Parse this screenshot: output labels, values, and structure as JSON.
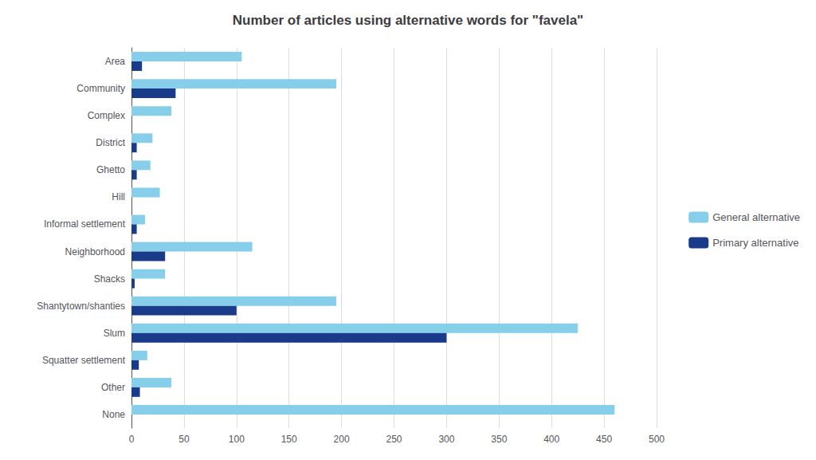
{
  "chart_data": {
    "type": "bar",
    "orientation": "horizontal",
    "title": "Number of articles using alternative words for \"favela\"",
    "categories": [
      "None",
      "Other",
      "Squatter settlement",
      "Slum",
      "Shantytown/shanties",
      "Shacks",
      "Neighborhood",
      "Informal settlement",
      "Hill",
      "Ghetto",
      "District",
      "Complex",
      "Community",
      "Area"
    ],
    "series": [
      {
        "name": "General alternative",
        "color": "#87CEEB",
        "values": [
          460,
          38,
          15,
          425,
          195,
          32,
          115,
          13,
          27,
          18,
          20,
          38,
          195,
          105
        ]
      },
      {
        "name": "Primary alternative",
        "color": "#1a3a8a",
        "values": [
          0,
          8,
          7,
          300,
          100,
          3,
          32,
          5,
          0,
          5,
          5,
          0,
          42,
          10
        ]
      }
    ],
    "xlim": [
      0,
      500
    ],
    "xticks": [
      0,
      50,
      100,
      150,
      200,
      250,
      300,
      350,
      400,
      450,
      500
    ],
    "grid": true,
    "legend": "right"
  }
}
